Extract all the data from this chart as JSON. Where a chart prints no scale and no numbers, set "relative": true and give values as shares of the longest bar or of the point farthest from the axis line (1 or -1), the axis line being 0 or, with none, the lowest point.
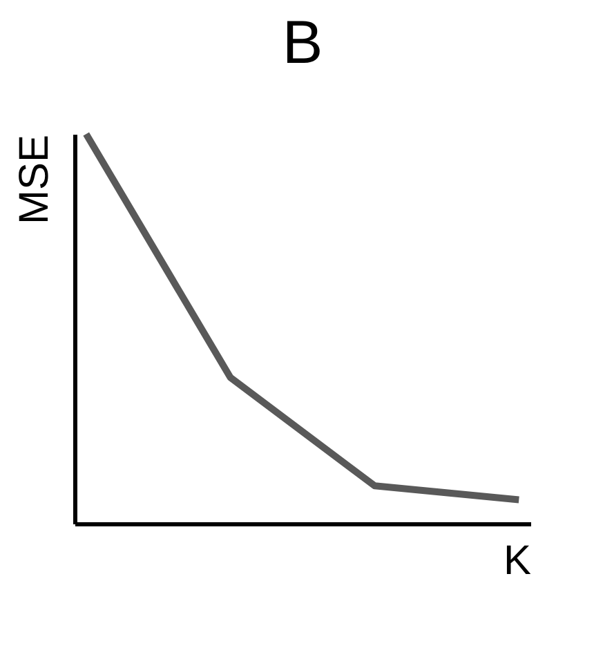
{
  "chart_data": {
    "type": "line",
    "title": "B",
    "xlabel": "K",
    "ylabel": "MSE",
    "relative": true,
    "categories": [
      null,
      null,
      null,
      null
    ],
    "series": [
      {
        "color": "#595959",
        "values": [
          1,
          0.375,
          0.097,
          0.061
        ]
      }
    ],
    "grid": false,
    "legend": false,
    "tick_labels": false,
    "marker": "none",
    "line_style": "solid"
  }
}
